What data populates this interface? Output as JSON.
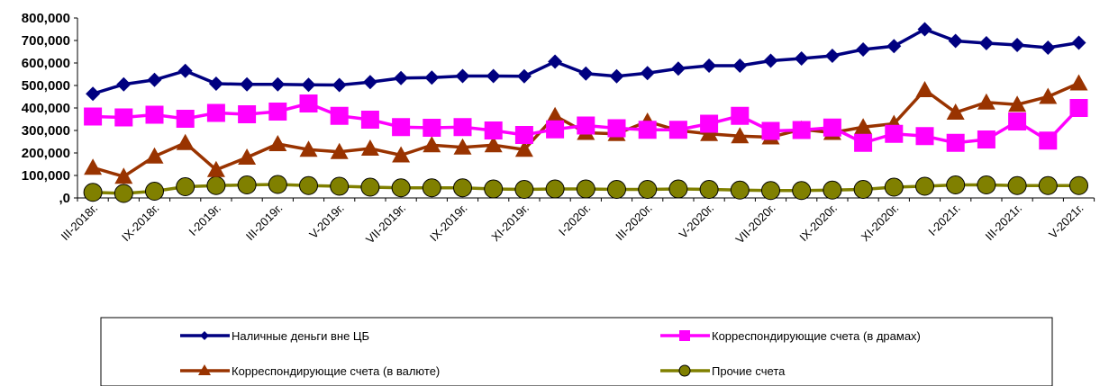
{
  "chart_data": {
    "type": "line",
    "ylim": [
      0,
      800000
    ],
    "yticks": [
      0,
      100000,
      200000,
      300000,
      400000,
      500000,
      600000,
      700000,
      800000
    ],
    "ytick_labels": [
      ",0",
      "100,000",
      "200,000",
      "300,000",
      "400,000",
      "500,000",
      "600,000",
      "700,000",
      "800,000"
    ],
    "x_tick_labels": [
      "III-2018г.",
      "IX-2018г.",
      "I-2019г.",
      "III-2019г.",
      "V-2019г.",
      "VII-2019г.",
      "IX-2019г.",
      "XI-2019г.",
      "I-2020г.",
      "III-2020г.",
      "V-2020г.",
      "VII-2020г.",
      "IX-2020г.",
      "XI-2020г.",
      "I-2021г.",
      "III-2021г.",
      "V-2021г."
    ],
    "grid": false,
    "legend_position": "bottom",
    "series": [
      {
        "name": "Наличные деньги вне ЦБ",
        "color": "#000080",
        "marker": "diamond",
        "values": [
          463000,
          505000,
          525000,
          565000,
          508000,
          505000,
          505000,
          503000,
          502000,
          515000,
          533000,
          535000,
          542000,
          542000,
          541000,
          606000,
          553000,
          541000,
          555000,
          575000,
          588000,
          588000,
          610000,
          620000,
          632000,
          660000,
          675000,
          750000,
          698000,
          688000,
          680000,
          668000,
          690000
        ]
      },
      {
        "name": "Корреспондирующие счета (в драмах)",
        "color": "#FF00FF",
        "marker": "square",
        "values": [
          362000,
          358000,
          370000,
          352000,
          378000,
          372000,
          384000,
          420000,
          365000,
          348000,
          315000,
          312000,
          315000,
          300000,
          280000,
          305000,
          322000,
          310000,
          303000,
          303000,
          330000,
          365000,
          298000,
          302000,
          313000,
          245000,
          285000,
          275000,
          245000,
          260000,
          340000,
          255000,
          400000
        ]
      },
      {
        "name": "Корреспондирующие счета (в валюте)",
        "color": "#993300",
        "marker": "triangle",
        "values": [
          135000,
          95000,
          185000,
          245000,
          125000,
          180000,
          240000,
          215000,
          205000,
          220000,
          190000,
          235000,
          225000,
          235000,
          215000,
          365000,
          290000,
          285000,
          340000,
          300000,
          285000,
          275000,
          270000,
          305000,
          290000,
          315000,
          330000,
          480000,
          380000,
          425000,
          415000,
          450000,
          510000
        ]
      },
      {
        "name": "Прочие счета",
        "color": "#808000",
        "marker": "circle",
        "values": [
          25000,
          20000,
          30000,
          50000,
          55000,
          58000,
          60000,
          55000,
          52000,
          48000,
          45000,
          45000,
          45000,
          40000,
          38000,
          40000,
          40000,
          38000,
          38000,
          40000,
          38000,
          35000,
          33000,
          33000,
          35000,
          38000,
          48000,
          52000,
          58000,
          58000,
          55000,
          55000,
          55000
        ]
      }
    ]
  }
}
